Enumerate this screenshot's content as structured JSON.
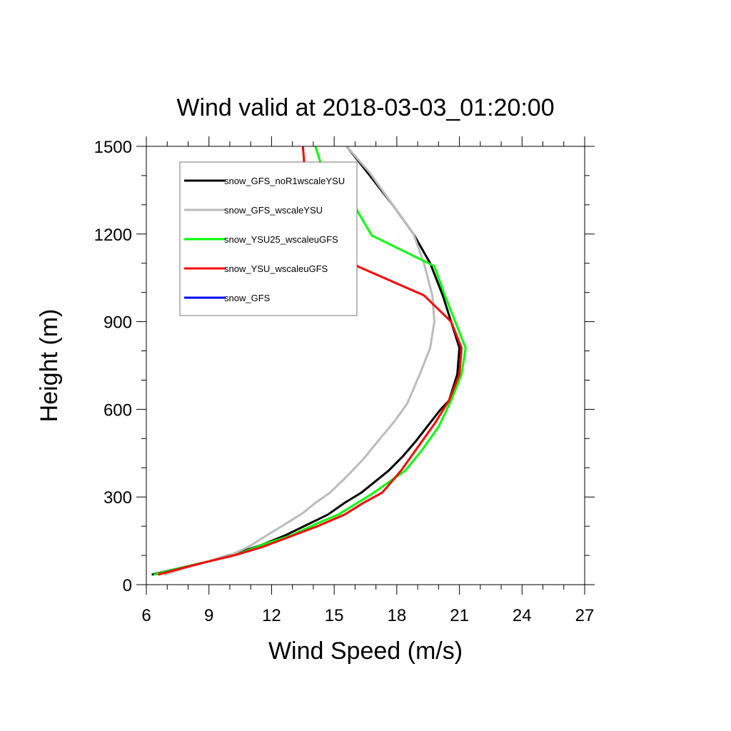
{
  "chart_data": {
    "type": "line",
    "title": "Wind valid at 2018-03-03_01:20:00",
    "xlabel": "Wind Speed (m/s)",
    "ylabel": "Height (m)",
    "xlim": [
      6,
      27
    ],
    "ylim": [
      0,
      1500
    ],
    "xticks": [
      6,
      9,
      12,
      15,
      18,
      21,
      24,
      27
    ],
    "yticks": [
      0,
      300,
      600,
      900,
      1200,
      1500
    ],
    "legend_position": "top-left",
    "series": [
      {
        "name": "snow_GFS_noR1wscaleYSU",
        "color": "#000000",
        "points": [
          [
            6.3,
            35
          ],
          [
            7.8,
            60
          ],
          [
            9.0,
            80
          ],
          [
            10.2,
            105
          ],
          [
            11.5,
            135
          ],
          [
            12.7,
            170
          ],
          [
            13.7,
            205
          ],
          [
            14.7,
            240
          ],
          [
            15.5,
            280
          ],
          [
            16.3,
            315
          ],
          [
            17.0,
            355
          ],
          [
            17.6,
            390
          ],
          [
            18.3,
            440
          ],
          [
            18.9,
            490
          ],
          [
            19.5,
            545
          ],
          [
            20.1,
            600
          ],
          [
            20.5,
            630
          ],
          [
            20.9,
            720
          ],
          [
            21.0,
            810
          ],
          [
            20.6,
            900
          ],
          [
            20.2,
            990
          ],
          [
            19.6,
            1100
          ],
          [
            18.8,
            1200
          ],
          [
            17.8,
            1300
          ],
          [
            16.6,
            1410
          ],
          [
            15.6,
            1500
          ]
        ]
      },
      {
        "name": "snow_GFS_wscaleYSU",
        "color": "#bbbbbb",
        "points": [
          [
            6.9,
            35
          ],
          [
            8.0,
            60
          ],
          [
            9.0,
            80
          ],
          [
            10.0,
            100
          ],
          [
            10.9,
            130
          ],
          [
            11.8,
            170
          ],
          [
            12.6,
            205
          ],
          [
            13.5,
            245
          ],
          [
            14.1,
            280
          ],
          [
            14.8,
            315
          ],
          [
            15.6,
            370
          ],
          [
            16.4,
            430
          ],
          [
            17.2,
            500
          ],
          [
            17.9,
            560
          ],
          [
            18.5,
            620
          ],
          [
            19.1,
            720
          ],
          [
            19.6,
            810
          ],
          [
            19.8,
            900
          ],
          [
            19.7,
            990
          ],
          [
            19.3,
            1100
          ],
          [
            18.8,
            1200
          ],
          [
            17.8,
            1300
          ],
          [
            16.7,
            1410
          ],
          [
            15.6,
            1500
          ]
        ]
      },
      {
        "name": "snow_YSU25_wscaleuGFS",
        "color": "#00ff00",
        "points": [
          [
            6.4,
            35
          ],
          [
            7.8,
            60
          ],
          [
            9.0,
            80
          ],
          [
            10.2,
            100
          ],
          [
            11.7,
            140
          ],
          [
            13.0,
            170
          ],
          [
            14.2,
            210
          ],
          [
            15.2,
            240
          ],
          [
            16.0,
            275
          ],
          [
            16.8,
            310
          ],
          [
            17.6,
            350
          ],
          [
            18.4,
            390
          ],
          [
            19.2,
            460
          ],
          [
            20.0,
            540
          ],
          [
            20.6,
            630
          ],
          [
            21.1,
            720
          ],
          [
            21.3,
            810
          ],
          [
            20.8,
            900
          ],
          [
            20.3,
            990
          ],
          [
            19.8,
            1090
          ],
          [
            16.8,
            1195
          ],
          [
            15.6,
            1340
          ],
          [
            14.5,
            1410
          ],
          [
            14.1,
            1500
          ]
        ]
      },
      {
        "name": "snow_YSU_wscaleuGFS",
        "color": "#ff0000",
        "points": [
          [
            6.6,
            35
          ],
          [
            7.9,
            60
          ],
          [
            9.0,
            80
          ],
          [
            10.2,
            100
          ],
          [
            11.6,
            130
          ],
          [
            12.9,
            165
          ],
          [
            14.2,
            200
          ],
          [
            15.5,
            240
          ],
          [
            16.4,
            280
          ],
          [
            17.3,
            315
          ],
          [
            18.2,
            390
          ],
          [
            19.0,
            470
          ],
          [
            19.8,
            550
          ],
          [
            20.5,
            630
          ],
          [
            21.0,
            720
          ],
          [
            21.1,
            810
          ],
          [
            20.6,
            900
          ],
          [
            19.3,
            990
          ],
          [
            16.1,
            1090
          ],
          [
            14.9,
            1195
          ],
          [
            14.0,
            1290
          ],
          [
            13.7,
            1370
          ],
          [
            13.6,
            1410
          ],
          [
            13.5,
            1500
          ]
        ]
      },
      {
        "name": "snow_GFS",
        "color": "#0000ff",
        "points": []
      }
    ]
  }
}
